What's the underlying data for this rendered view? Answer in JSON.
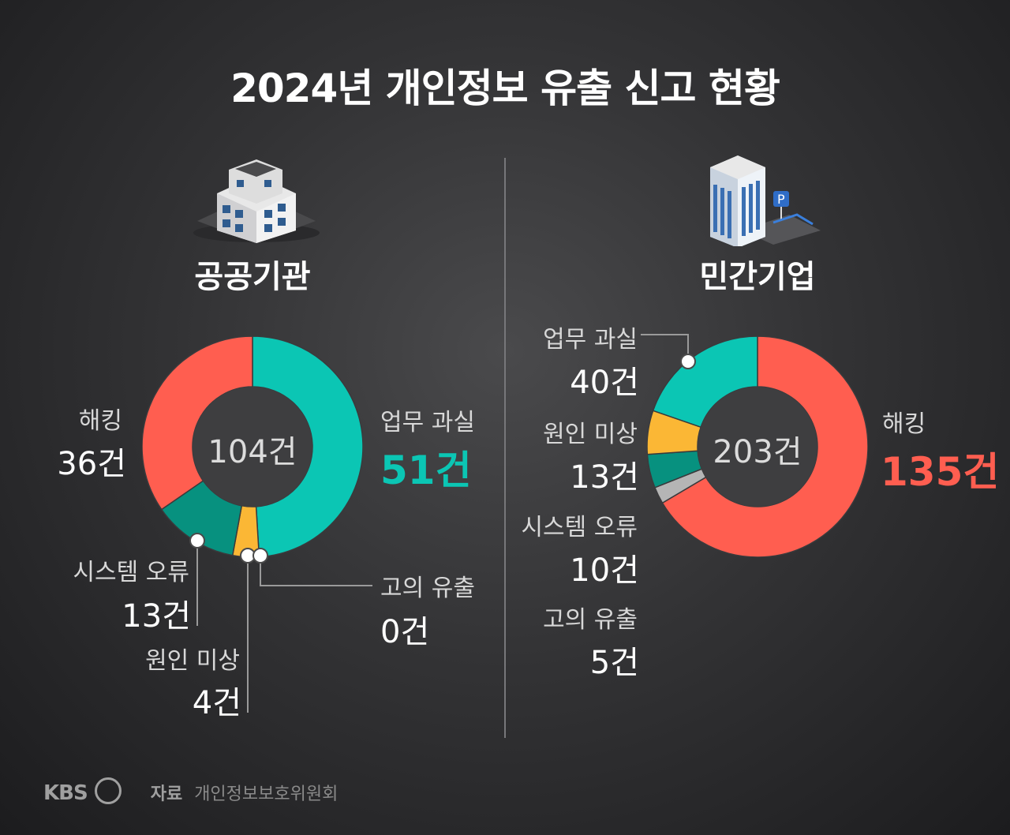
{
  "title": "2024년 개인정보 유출 신고 현황",
  "source_label": "자료",
  "source": "개인정보보호위원회",
  "logo": "KBS",
  "colors": {
    "hacking": "#ff5e50",
    "work_error": "#0bc6b4",
    "system_error": "#07917f",
    "unknown": "#fbb735",
    "intentional": "#b5b5b5",
    "hole": "#3e3e40"
  },
  "chart_data": [
    {
      "type": "pie",
      "name": "공공기관",
      "total_label": "104건",
      "total": 104,
      "slices": [
        {
          "label": "업무 과실",
          "value": 51,
          "value_label": "51건"
        },
        {
          "label": "고의 유출",
          "value": 0,
          "value_label": "0건"
        },
        {
          "label": "원인 미상",
          "value": 4,
          "value_label": "4건"
        },
        {
          "label": "시스템 오류",
          "value": 13,
          "value_label": "13건"
        },
        {
          "label": "해킹",
          "value": 36,
          "value_label": "36건"
        }
      ]
    },
    {
      "type": "pie",
      "name": "민간기업",
      "total_label": "203건",
      "total": 203,
      "slices": [
        {
          "label": "해킹",
          "value": 135,
          "value_label": "135건"
        },
        {
          "label": "고의 유출",
          "value": 5,
          "value_label": "5건"
        },
        {
          "label": "시스템 오류",
          "value": 10,
          "value_label": "10건"
        },
        {
          "label": "원인 미상",
          "value": 13,
          "value_label": "13건"
        },
        {
          "label": "업무 과실",
          "value": 40,
          "value_label": "40건"
        }
      ]
    }
  ]
}
